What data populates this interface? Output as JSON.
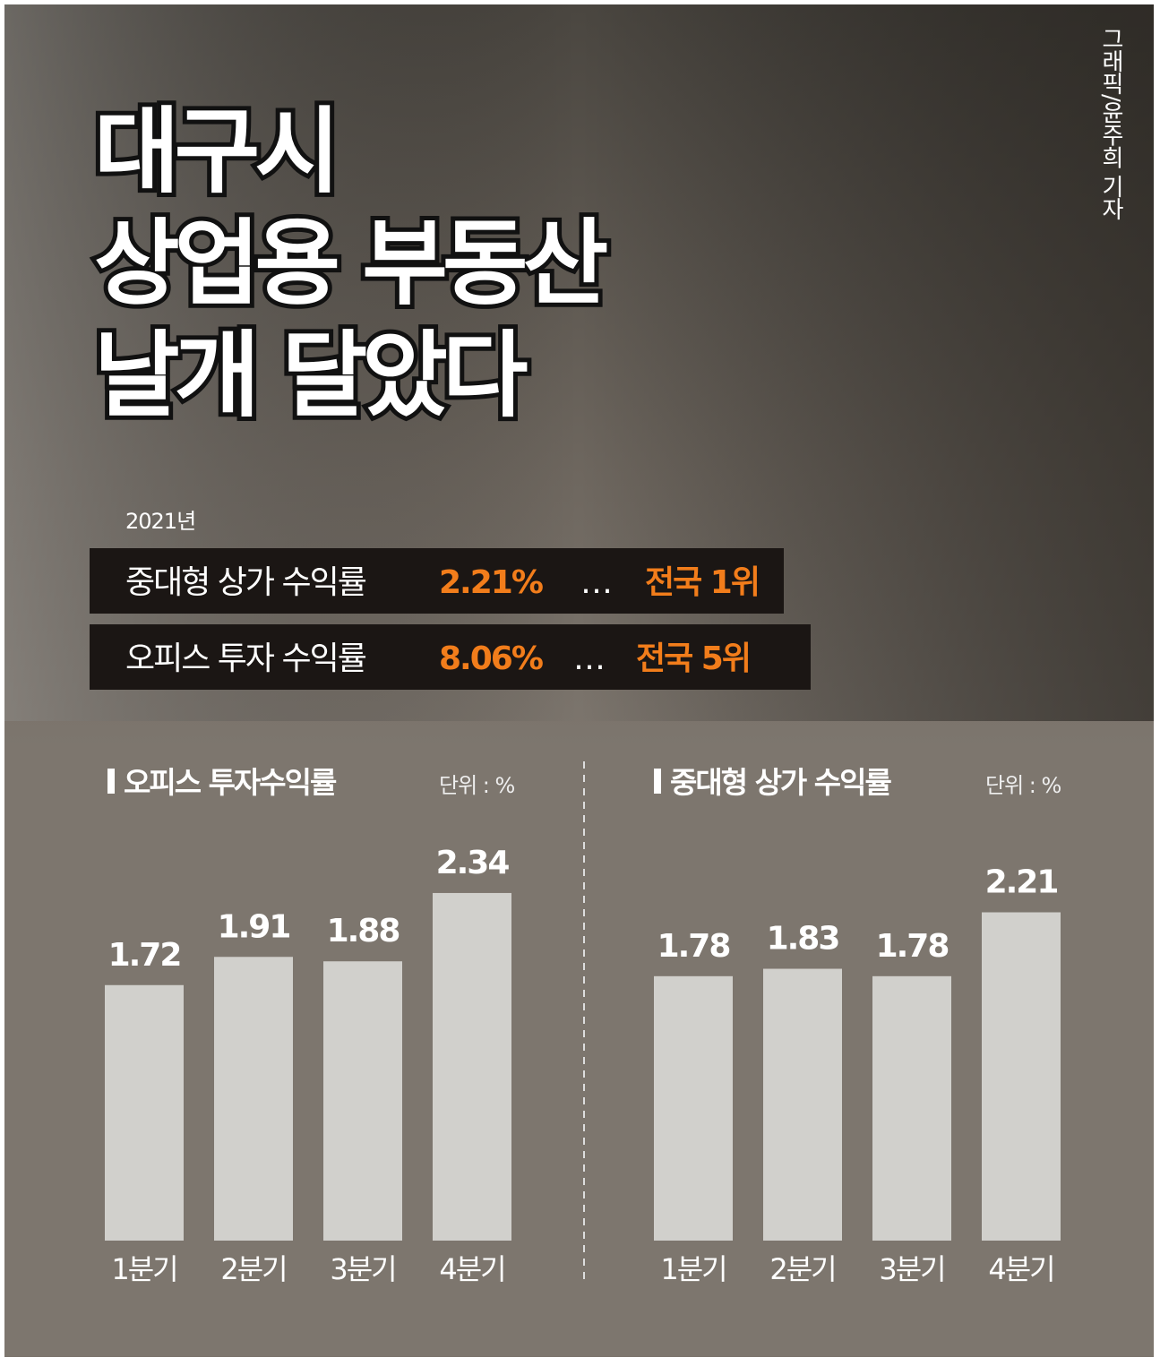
{
  "header": {
    "title": [
      "대구시",
      "상업용 부동산",
      "날개 달았다"
    ],
    "credit": "그래픽/윤주희 기자",
    "year": "2021년",
    "highlights": [
      {
        "label": "중대형 상가 수익률",
        "value": "2.21%",
        "sep": "…",
        "rank": "전국 1위"
      },
      {
        "label": "오피스 투자 수익률",
        "value": "8.06%",
        "sep": "…",
        "rank": "전국 5위"
      }
    ]
  },
  "chart_data": [
    {
      "type": "bar",
      "title": "오피스 투자수익률",
      "unit": "단위 : %",
      "categories": [
        "1분기",
        "2분기",
        "3분기",
        "4분기"
      ],
      "values": [
        1.72,
        1.91,
        1.88,
        2.34
      ],
      "color": "#d1d0cc",
      "ylim": [
        0,
        2.4
      ]
    },
    {
      "type": "bar",
      "title": "중대형 상가 수익률",
      "unit": "단위 : %",
      "categories": [
        "1분기",
        "2분기",
        "3분기",
        "4분기"
      ],
      "values": [
        1.78,
        1.83,
        1.78,
        2.21
      ],
      "color": "#d1d0cc",
      "ylim": [
        0,
        2.4
      ]
    }
  ]
}
